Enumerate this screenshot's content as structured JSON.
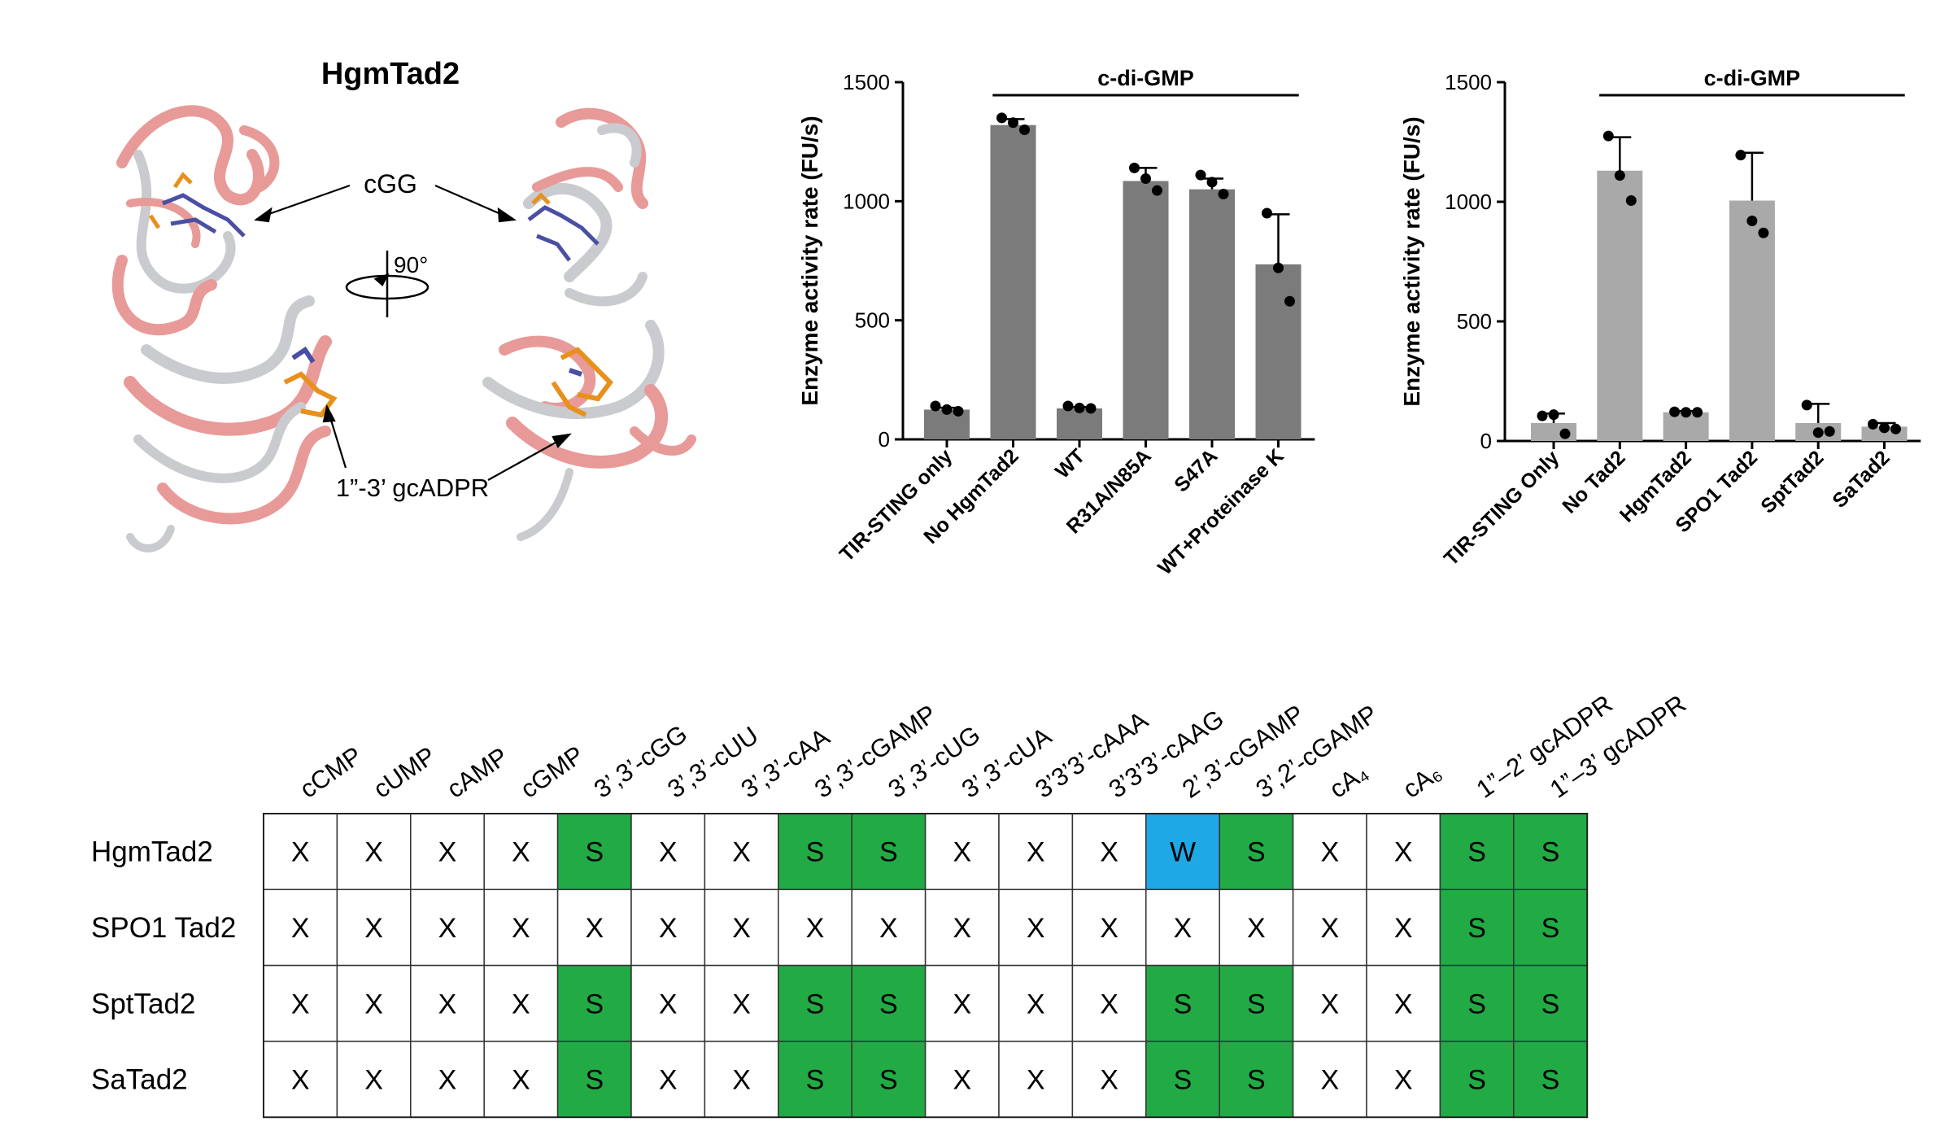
{
  "structure_panel": {
    "title": "HgmTad2",
    "ligand_label": "cGG",
    "rotation_label": "90°",
    "site_label": "1”-3’ gcADPR",
    "colors": {
      "ribbon_pink": "#e89a98",
      "ribbon_grey": "#c9cbcf",
      "ligand_blue": "#4a4fa3",
      "ligand_orange": "#e8901c"
    }
  },
  "chart_data": [
    {
      "type": "bar",
      "ylabel": "Enzyme activity rate (FU/s)",
      "ylim": [
        0,
        1500
      ],
      "yticks": [
        "0",
        "500",
        "1000",
        "1500"
      ],
      "yticks_values": [
        0,
        500,
        1000,
        1500
      ],
      "bracket_label": "c-di-GMP",
      "bracket_span": [
        "No HgmTad2",
        "WT+Proteinase K"
      ],
      "bar_color": "#7b7b7b",
      "categories": [
        "TIR-STING only",
        "No HgmTad2",
        "WT",
        "R31A/N85A",
        "S47A",
        "WT+Proteinase K"
      ],
      "values": [
        125,
        1320,
        130,
        1085,
        1050,
        735
      ],
      "errors": [
        8,
        25,
        6,
        55,
        45,
        210
      ],
      "points": [
        [
          140,
          125,
          118
        ],
        [
          1350,
          1330,
          1300
        ],
        [
          140,
          132,
          130
        ],
        [
          1140,
          1095,
          1045
        ],
        [
          1110,
          1080,
          1030
        ],
        [
          950,
          720,
          580
        ]
      ]
    },
    {
      "type": "bar",
      "ylabel": "Enzyme activity rate (FU/s)",
      "ylim": [
        0,
        1500
      ],
      "yticks": [
        "0",
        "500",
        "1000",
        "1500"
      ],
      "yticks_values": [
        0,
        500,
        1000,
        1500
      ],
      "bracket_label": "c-di-GMP",
      "bracket_span": [
        "No Tad2",
        "SaTad2"
      ],
      "bar_color": "#a9a9a9",
      "categories": [
        "TIR-STING Only",
        "No Tad2",
        "HgmTad2",
        "SPO1 Tad2",
        "SptTad2",
        "SaTad2"
      ],
      "values": [
        75,
        1130,
        120,
        1005,
        75,
        60
      ],
      "errors": [
        40,
        140,
        5,
        200,
        80,
        15
      ],
      "points": [
        [
          105,
          110,
          30
        ],
        [
          1275,
          1110,
          1005
        ],
        [
          122,
          120,
          120
        ],
        [
          1195,
          920,
          870
        ],
        [
          150,
          35,
          40
        ],
        [
          70,
          55,
          50
        ]
      ]
    }
  ],
  "specificity_table": {
    "columns": [
      "cCMP",
      "cUMP",
      "cAMP",
      "cGMP",
      "3’,3’-cGG",
      "3’,3’-cUU",
      "3’,3’-cAA",
      "3’,3’-cGAMP",
      "3’,3’-cUG",
      "3’,3’-cUA",
      "3’3’3’-cAAA",
      "3’3’3’-cAAG",
      "2’,3’-cGAMP",
      "3’,2’-cGAMP",
      "cA₄",
      "cA₆",
      "1”–2’ gcADPR",
      "1”–3’ gcADPR"
    ],
    "rows": [
      {
        "name": "HgmTad2",
        "cells": [
          "X",
          "X",
          "X",
          "X",
          "S",
          "X",
          "X",
          "S",
          "S",
          "X",
          "X",
          "X",
          "W",
          "S",
          "X",
          "X",
          "S",
          "S"
        ]
      },
      {
        "name": "SPO1 Tad2",
        "cells": [
          "X",
          "X",
          "X",
          "X",
          "X",
          "X",
          "X",
          "X",
          "X",
          "X",
          "X",
          "X",
          "X",
          "X",
          "X",
          "X",
          "S",
          "S"
        ]
      },
      {
        "name": "SptTad2",
        "cells": [
          "X",
          "X",
          "X",
          "X",
          "S",
          "X",
          "X",
          "S",
          "S",
          "X",
          "X",
          "X",
          "S",
          "S",
          "X",
          "X",
          "S",
          "S"
        ]
      },
      {
        "name": "SaTad2",
        "cells": [
          "X",
          "X",
          "X",
          "X",
          "S",
          "X",
          "X",
          "S",
          "S",
          "X",
          "X",
          "X",
          "S",
          "S",
          "X",
          "X",
          "S",
          "S"
        ]
      }
    ],
    "colors": {
      "S": "#22aa45",
      "W": "#1ea8e6",
      "X": "#ffffff"
    }
  }
}
